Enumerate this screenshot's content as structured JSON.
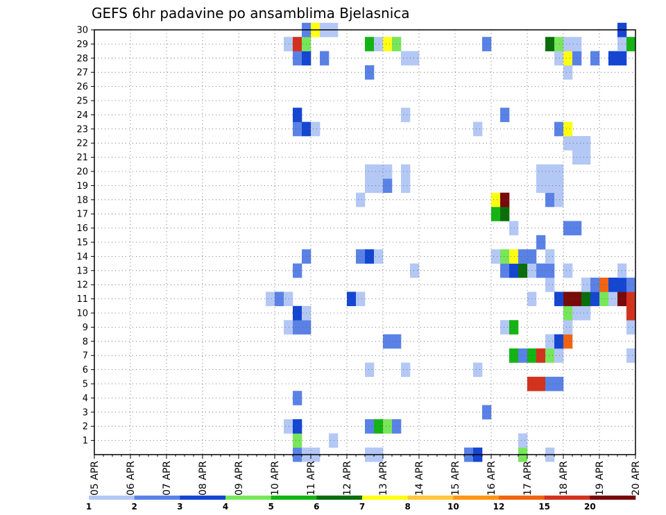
{
  "chart_data": {
    "type": "heatmap",
    "title": "GEFS 6hr padavine po ansamblima Bjelasnica",
    "y_tick_labels": [
      "1",
      "2",
      "3",
      "4",
      "5",
      "6",
      "7",
      "8",
      "9",
      "10",
      "11",
      "12",
      "13",
      "14",
      "15",
      "16",
      "17",
      "18",
      "19",
      "20",
      "21",
      "22",
      "23",
      "24",
      "25",
      "26",
      "27",
      "28",
      "29",
      "30"
    ],
    "x_tick_labels": [
      "05 APR",
      "06 APR",
      "07 APR",
      "08 APR",
      "09 APR",
      "10 APR",
      "11 APR",
      "12 APR",
      "13 APR",
      "14 APR",
      "15 APR",
      "16 APR",
      "17 APR",
      "18 APR",
      "19 APR",
      "20 APR"
    ],
    "x_range": [
      "05 APR",
      "20 APR"
    ],
    "steps_per_day": 4,
    "y_range": [
      0,
      30
    ],
    "grid": true,
    "colorbar": {
      "labels": [
        "1",
        "2",
        "3",
        "4",
        "5",
        "6",
        "7",
        "8",
        "10",
        "12",
        "15",
        "20"
      ],
      "colors": [
        "#b4c8f5",
        "#5a82e6",
        "#1446d2",
        "#78e65a",
        "#14b414",
        "#0a6e0a",
        "#ffff14",
        "#ffc83c",
        "#ff9614",
        "#f06414",
        "#d2321e",
        "#780a0a"
      ]
    },
    "cells": [
      [
        0,
        22,
        2
      ],
      [
        0,
        23,
        1
      ],
      [
        0,
        24,
        1
      ],
      [
        0,
        30,
        1
      ],
      [
        0,
        31,
        1
      ],
      [
        0,
        41,
        2
      ],
      [
        0,
        42,
        3
      ],
      [
        0,
        47,
        4
      ],
      [
        0,
        50,
        1
      ],
      [
        1,
        22,
        4
      ],
      [
        1,
        26,
        1
      ],
      [
        1,
        47,
        1
      ],
      [
        2,
        21,
        1
      ],
      [
        2,
        22,
        3
      ],
      [
        2,
        30,
        2
      ],
      [
        2,
        31,
        5
      ],
      [
        2,
        32,
        4
      ],
      [
        2,
        33,
        2
      ],
      [
        3,
        43,
        2
      ],
      [
        4,
        22,
        2
      ],
      [
        5,
        48,
        11
      ],
      [
        5,
        49,
        11
      ],
      [
        5,
        50,
        2
      ],
      [
        5,
        51,
        2
      ],
      [
        6,
        30,
        1
      ],
      [
        6,
        34,
        1
      ],
      [
        6,
        42,
        1
      ],
      [
        7,
        46,
        5
      ],
      [
        7,
        47,
        2
      ],
      [
        7,
        48,
        5
      ],
      [
        7,
        49,
        11
      ],
      [
        7,
        50,
        4
      ],
      [
        7,
        51,
        1
      ],
      [
        7,
        59,
        1
      ],
      [
        8,
        32,
        2
      ],
      [
        8,
        33,
        2
      ],
      [
        8,
        50,
        1
      ],
      [
        8,
        51,
        3
      ],
      [
        8,
        52,
        10
      ],
      [
        9,
        21,
        1
      ],
      [
        9,
        22,
        2
      ],
      [
        9,
        23,
        2
      ],
      [
        9,
        45,
        1
      ],
      [
        9,
        46,
        5
      ],
      [
        9,
        52,
        1
      ],
      [
        9,
        59,
        1
      ],
      [
        10,
        22,
        3
      ],
      [
        10,
        23,
        1
      ],
      [
        10,
        52,
        4
      ],
      [
        10,
        53,
        1
      ],
      [
        10,
        54,
        1
      ],
      [
        10,
        59,
        11
      ],
      [
        11,
        19,
        1
      ],
      [
        11,
        20,
        2
      ],
      [
        11,
        21,
        1
      ],
      [
        11,
        28,
        3
      ],
      [
        11,
        29,
        1
      ],
      [
        11,
        48,
        1
      ],
      [
        11,
        51,
        3
      ],
      [
        11,
        52,
        12
      ],
      [
        11,
        53,
        12
      ],
      [
        11,
        54,
        6
      ],
      [
        11,
        55,
        3
      ],
      [
        11,
        56,
        4
      ],
      [
        11,
        57,
        1
      ],
      [
        11,
        58,
        12
      ],
      [
        11,
        59,
        11
      ],
      [
        12,
        50,
        1
      ],
      [
        12,
        54,
        1
      ],
      [
        12,
        55,
        2
      ],
      [
        12,
        56,
        10
      ],
      [
        12,
        57,
        3
      ],
      [
        12,
        58,
        3
      ],
      [
        12,
        59,
        2
      ],
      [
        13,
        22,
        2
      ],
      [
        13,
        35,
        1
      ],
      [
        13,
        45,
        2
      ],
      [
        13,
        46,
        3
      ],
      [
        13,
        47,
        6
      ],
      [
        13,
        48,
        1
      ],
      [
        13,
        49,
        2
      ],
      [
        13,
        50,
        2
      ],
      [
        13,
        52,
        1
      ],
      [
        13,
        58,
        1
      ],
      [
        14,
        23,
        2
      ],
      [
        14,
        29,
        2
      ],
      [
        14,
        30,
        3
      ],
      [
        14,
        31,
        1
      ],
      [
        14,
        44,
        1
      ],
      [
        14,
        45,
        4
      ],
      [
        14,
        46,
        7
      ],
      [
        14,
        47,
        2
      ],
      [
        14,
        48,
        2
      ],
      [
        14,
        50,
        1
      ],
      [
        15,
        49,
        2
      ],
      [
        16,
        46,
        1
      ],
      [
        16,
        52,
        2
      ],
      [
        16,
        53,
        2
      ],
      [
        17,
        44,
        5
      ],
      [
        17,
        45,
        6
      ],
      [
        18,
        29,
        1
      ],
      [
        18,
        44,
        7
      ],
      [
        18,
        45,
        12
      ],
      [
        18,
        50,
        2
      ],
      [
        18,
        51,
        1
      ],
      [
        19,
        30,
        1
      ],
      [
        19,
        31,
        1
      ],
      [
        19,
        32,
        2
      ],
      [
        19,
        34,
        1
      ],
      [
        19,
        49,
        1
      ],
      [
        19,
        50,
        1
      ],
      [
        19,
        51,
        1
      ],
      [
        20,
        30,
        1
      ],
      [
        20,
        31,
        1
      ],
      [
        20,
        32,
        1
      ],
      [
        20,
        34,
        1
      ],
      [
        20,
        49,
        1
      ],
      [
        20,
        50,
        1
      ],
      [
        20,
        51,
        1
      ],
      [
        21,
        53,
        1
      ],
      [
        21,
        54,
        1
      ],
      [
        22,
        52,
        1
      ],
      [
        22,
        53,
        1
      ],
      [
        22,
        54,
        1
      ],
      [
        23,
        22,
        2
      ],
      [
        23,
        23,
        3
      ],
      [
        23,
        24,
        1
      ],
      [
        23,
        42,
        1
      ],
      [
        23,
        51,
        2
      ],
      [
        23,
        52,
        7
      ],
      [
        24,
        22,
        3
      ],
      [
        24,
        45,
        2
      ],
      [
        24,
        34,
        1
      ],
      [
        27,
        30,
        2
      ],
      [
        27,
        52,
        1
      ],
      [
        28,
        22,
        2
      ],
      [
        28,
        23,
        3
      ],
      [
        28,
        25,
        2
      ],
      [
        28,
        34,
        1
      ],
      [
        28,
        35,
        1
      ],
      [
        28,
        51,
        1
      ],
      [
        28,
        52,
        7
      ],
      [
        28,
        53,
        2
      ],
      [
        28,
        55,
        2
      ],
      [
        28,
        57,
        3
      ],
      [
        28,
        58,
        3
      ],
      [
        29,
        21,
        1
      ],
      [
        29,
        22,
        11
      ],
      [
        29,
        23,
        4
      ],
      [
        29,
        30,
        5
      ],
      [
        29,
        31,
        1
      ],
      [
        29,
        32,
        7
      ],
      [
        29,
        33,
        4
      ],
      [
        29,
        43,
        2
      ],
      [
        29,
        50,
        6
      ],
      [
        29,
        51,
        4
      ],
      [
        29,
        52,
        1
      ],
      [
        29,
        53,
        1
      ],
      [
        29,
        58,
        1
      ],
      [
        29,
        59,
        5
      ],
      [
        30,
        23,
        2
      ],
      [
        30,
        24,
        7
      ],
      [
        30,
        25,
        1
      ],
      [
        30,
        26,
        1
      ],
      [
        30,
        58,
        3
      ]
    ]
  }
}
